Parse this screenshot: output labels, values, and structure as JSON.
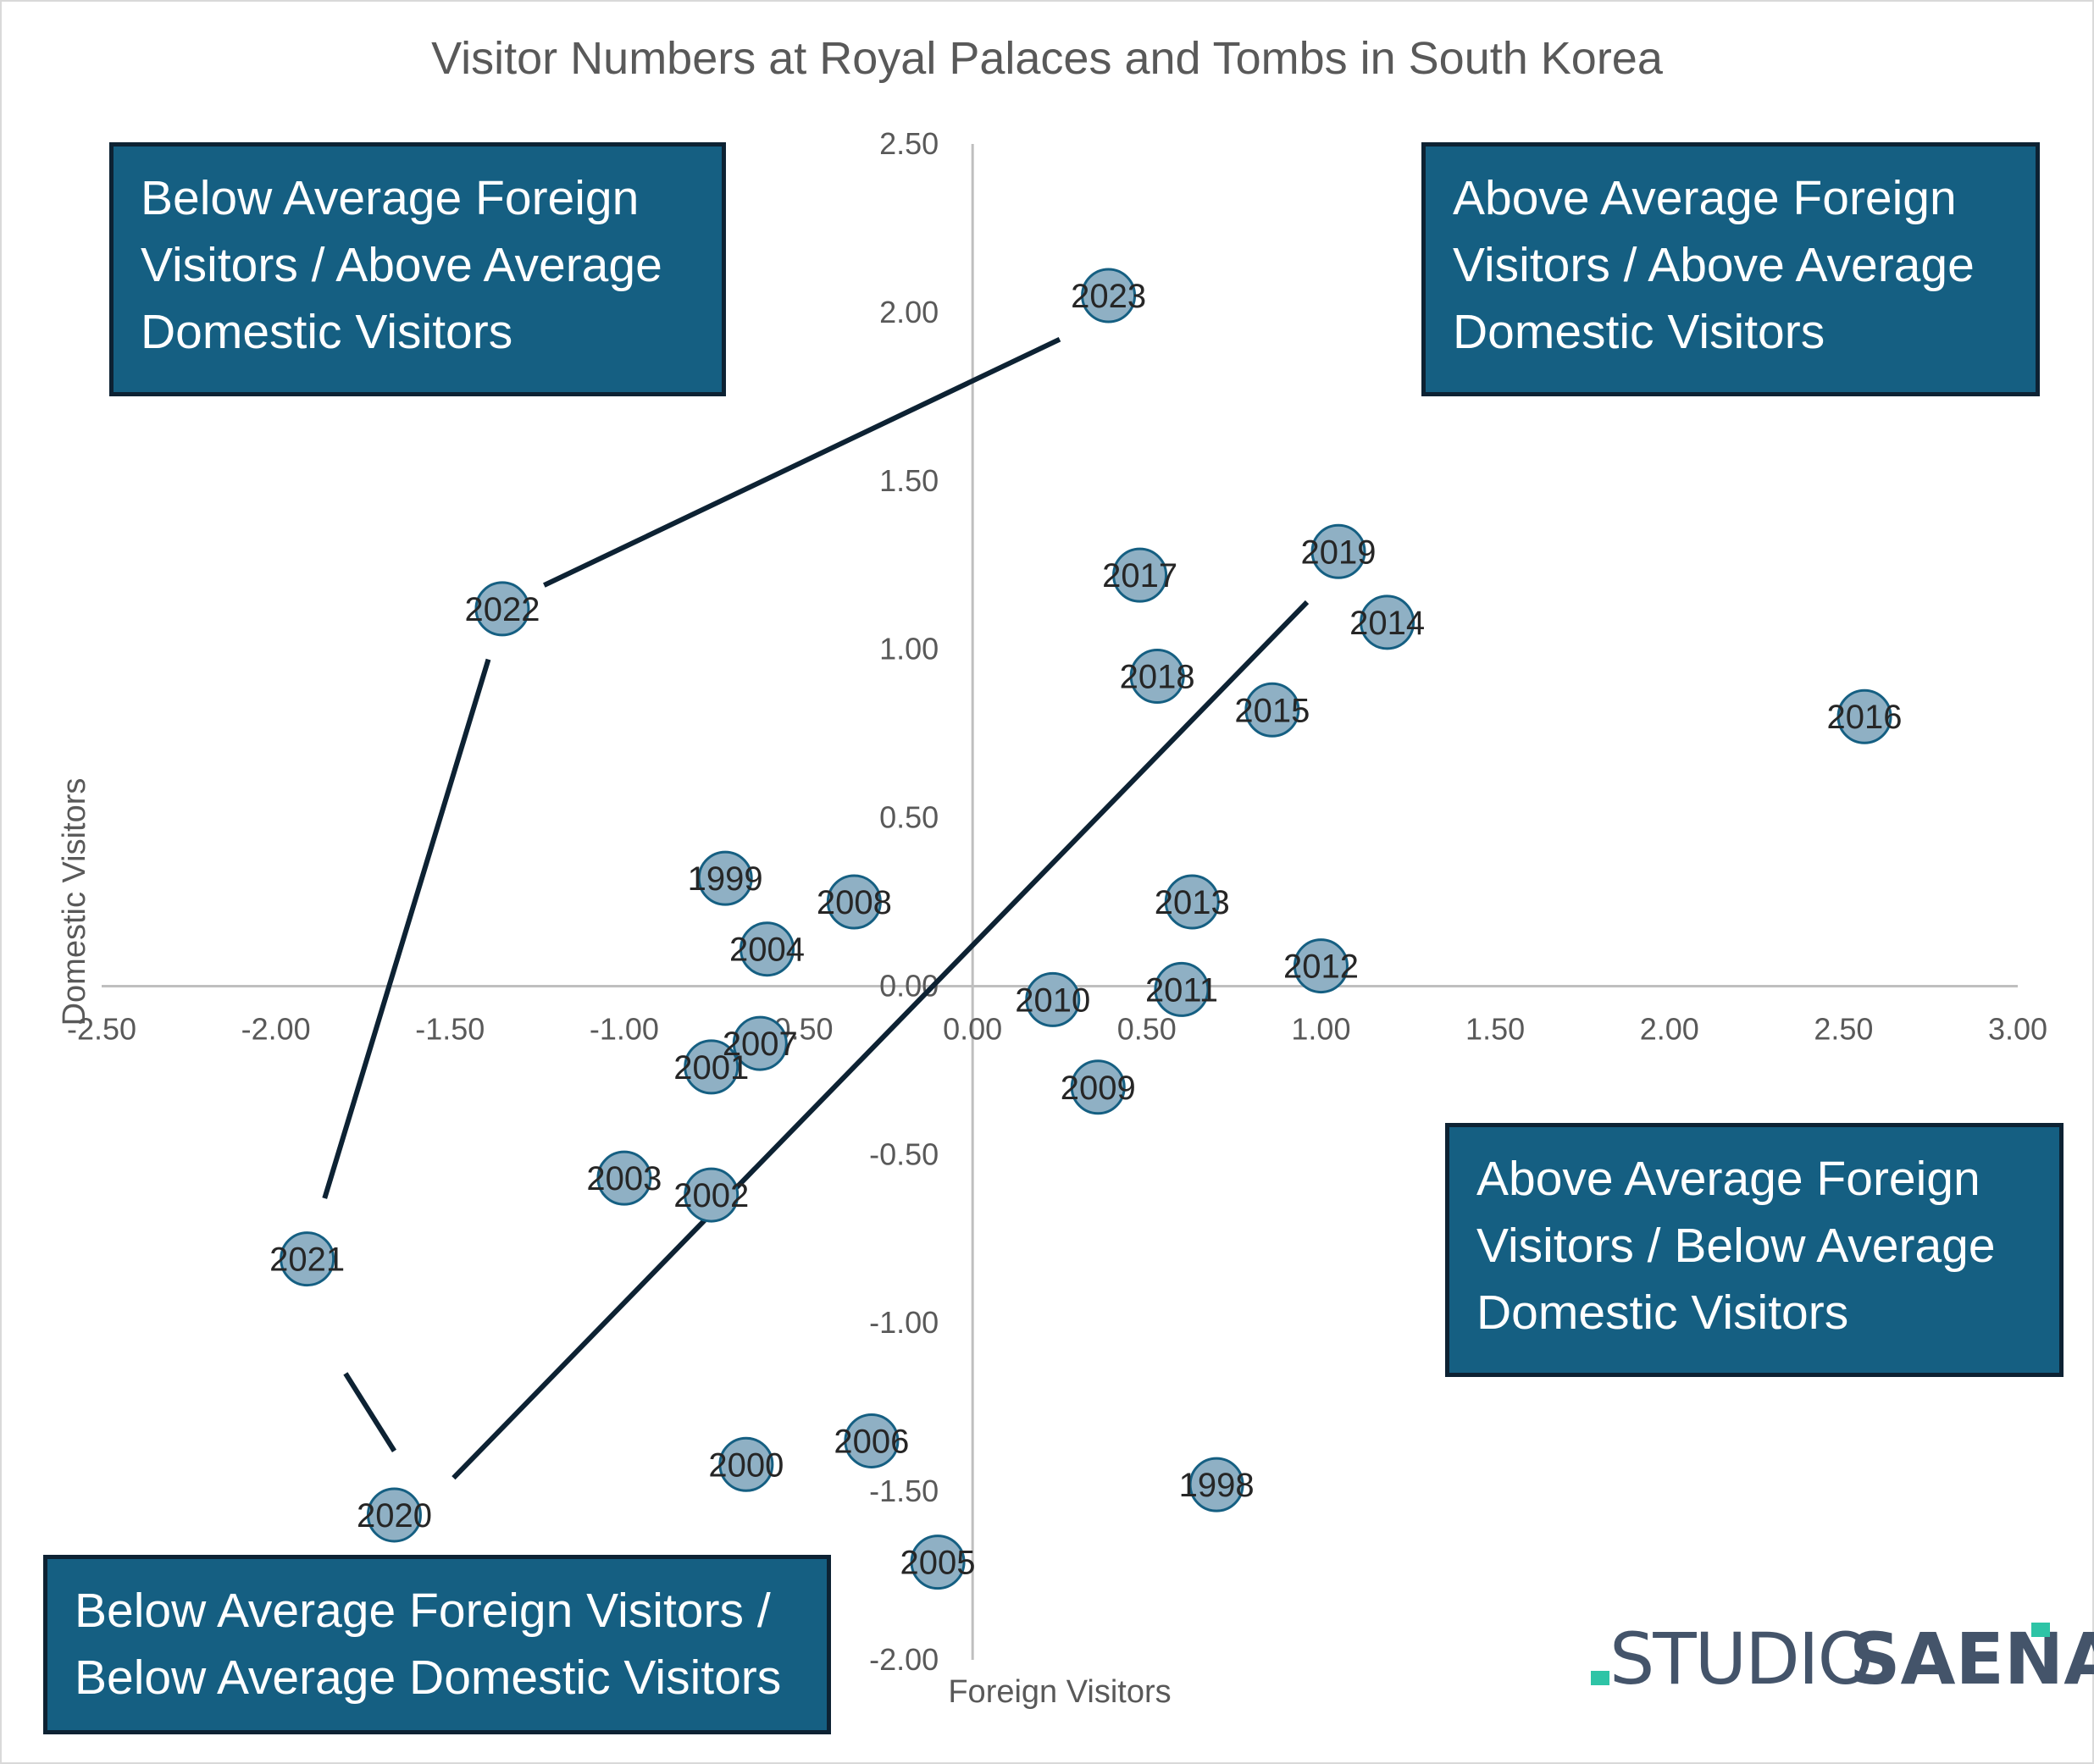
{
  "chart_data": {
    "type": "scatter",
    "title": "Visitor Numbers at Royal Palaces and Tombs in South Korea",
    "xlabel": "Foreign Visitors",
    "ylabel": "Domestic Visitors",
    "xlim": [
      -2.5,
      3.0
    ],
    "ylim": [
      -2.0,
      2.5
    ],
    "x_ticks": [
      "-2.50",
      "-2.00",
      "-1.50",
      "-1.00",
      "-0.50",
      "0.00",
      "0.50",
      "1.00",
      "1.50",
      "2.00",
      "2.50",
      "3.00"
    ],
    "y_ticks": [
      "2.50",
      "2.00",
      "1.50",
      "1.00",
      "0.50",
      "0.00",
      "-0.50",
      "-1.00",
      "-1.50",
      "-2.00"
    ],
    "points": [
      {
        "label": "1998",
        "x": 0.7,
        "y": -1.48
      },
      {
        "label": "1999",
        "x": -0.71,
        "y": 0.32
      },
      {
        "label": "2000",
        "x": -0.65,
        "y": -1.42
      },
      {
        "label": "2001",
        "x": -0.75,
        "y": -0.24
      },
      {
        "label": "2002",
        "x": -0.75,
        "y": -0.62
      },
      {
        "label": "2003",
        "x": -1.0,
        "y": -0.57
      },
      {
        "label": "2004",
        "x": -0.59,
        "y": 0.11
      },
      {
        "label": "2005",
        "x": -0.1,
        "y": -1.71
      },
      {
        "label": "2006",
        "x": -0.29,
        "y": -1.35
      },
      {
        "label": "2007",
        "x": -0.61,
        "y": -0.17
      },
      {
        "label": "2008",
        "x": -0.34,
        "y": 0.25
      },
      {
        "label": "2009",
        "x": 0.36,
        "y": -0.3
      },
      {
        "label": "2010",
        "x": 0.23,
        "y": -0.04
      },
      {
        "label": "2011",
        "x": 0.6,
        "y": -0.01
      },
      {
        "label": "2012",
        "x": 1.0,
        "y": 0.06
      },
      {
        "label": "2013",
        "x": 0.63,
        "y": 0.25
      },
      {
        "label": "2014",
        "x": 1.19,
        "y": 1.08
      },
      {
        "label": "2015",
        "x": 0.86,
        "y": 0.82
      },
      {
        "label": "2016",
        "x": 2.56,
        "y": 0.8
      },
      {
        "label": "2017",
        "x": 0.48,
        "y": 1.22
      },
      {
        "label": "2018",
        "x": 0.53,
        "y": 0.92
      },
      {
        "label": "2019",
        "x": 1.05,
        "y": 1.29
      },
      {
        "label": "2020",
        "x": -1.66,
        "y": -1.57
      },
      {
        "label": "2021",
        "x": -1.91,
        "y": -0.81
      },
      {
        "label": "2022",
        "x": -1.35,
        "y": 1.12
      },
      {
        "label": "2023",
        "x": 0.39,
        "y": 2.05
      }
    ],
    "connector_lines": [
      {
        "from": [
          -1.23,
          1.19
        ],
        "to": [
          0.25,
          1.92
        ]
      },
      {
        "from": [
          -1.39,
          0.97
        ],
        "to": [
          -1.86,
          -0.63
        ]
      },
      {
        "from": [
          -1.8,
          -1.15
        ],
        "to": [
          -1.66,
          -1.38
        ]
      },
      {
        "from": [
          -1.49,
          -1.46
        ],
        "to": [
          0.96,
          1.14
        ]
      }
    ],
    "colors": {
      "marker_fill": "#8fb0c4",
      "marker_stroke": "#155f82",
      "connector": "#0d2233",
      "axis": "#bfbfbf",
      "box_fill": "#155f82",
      "box_border": "#0d2233"
    }
  },
  "quadrant_labels": {
    "top_left": [
      "Below Average Foreign",
      "Visitors / Above Average",
      "Domestic Visitors"
    ],
    "top_right": [
      "Above Average Foreign",
      "Visitors / Above Average",
      "Domestic Visitors"
    ],
    "bottom_right": [
      "Above Average Foreign",
      "Visitors / Below Average",
      "Domestic Visitors"
    ],
    "bottom_left": [
      "Below Average Foreign Visitors /",
      "Below Average Domestic Visitors"
    ]
  },
  "logo": {
    "word1": "STUDIO",
    "word2": "SAENA"
  }
}
